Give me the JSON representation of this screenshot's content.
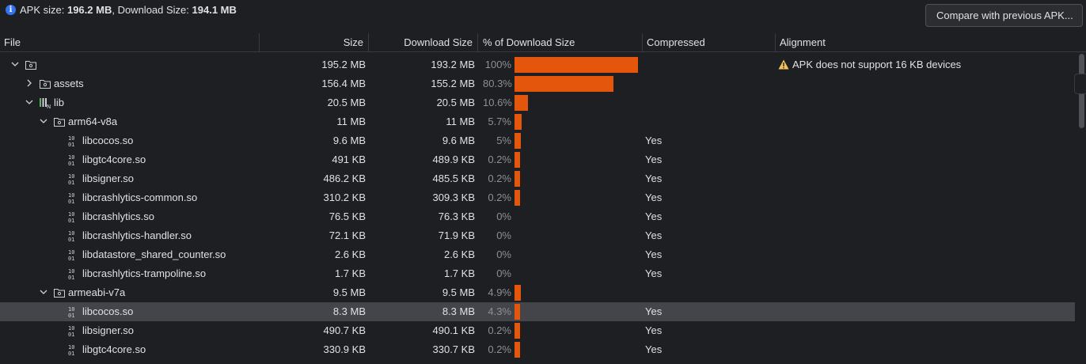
{
  "summary": {
    "apk_label": "APK size: ",
    "apk_value": "196.2 MB",
    "sep": ", Download Size: ",
    "download_value": "194.1 MB"
  },
  "compare_button": "Compare with previous APK...",
  "columns": [
    "File",
    "Size",
    "Download Size",
    "% of Download Size",
    "Compressed",
    "Alignment"
  ],
  "colors": {
    "bar": "#e4560c",
    "selected_row": "#43454a",
    "warning": "#f2c55c"
  },
  "rows": [
    {
      "depth": 0,
      "expand": "down",
      "icon": "folder-icon",
      "name": "",
      "size": "195.2 MB",
      "download": "193.2 MB",
      "pct": "100%",
      "percent": 100,
      "compressed": "",
      "alignment": "APK does not support 16 KB devices"
    },
    {
      "depth": 1,
      "expand": "right",
      "icon": "folder-icon",
      "name": "assets",
      "size": "156.4 MB",
      "download": "155.2 MB",
      "pct": "80.3%",
      "percent": 80.3,
      "compressed": "",
      "alignment": ""
    },
    {
      "depth": 1,
      "expand": "down",
      "icon": "native-lib-icon",
      "name": "lib",
      "size": "20.5 MB",
      "download": "20.5 MB",
      "pct": "10.6%",
      "percent": 10.6,
      "compressed": "",
      "alignment": ""
    },
    {
      "depth": 2,
      "expand": "down",
      "icon": "folder-icon",
      "name": "arm64-v8a",
      "size": "11 MB",
      "download": "11 MB",
      "pct": "5.7%",
      "percent": 5.7,
      "compressed": "",
      "alignment": ""
    },
    {
      "depth": 3,
      "expand": "",
      "icon": "binary-file-icon",
      "name": "libcocos.so",
      "size": "9.6 MB",
      "download": "9.6 MB",
      "pct": "5%",
      "percent": 5,
      "compressed": "Yes",
      "alignment": ""
    },
    {
      "depth": 3,
      "expand": "",
      "icon": "binary-file-icon",
      "name": "libgtc4core.so",
      "size": "491 KB",
      "download": "489.9 KB",
      "pct": "0.2%",
      "percent": 0.2,
      "compressed": "Yes",
      "alignment": ""
    },
    {
      "depth": 3,
      "expand": "",
      "icon": "binary-file-icon",
      "name": "libsigner.so",
      "size": "486.2 KB",
      "download": "485.5 KB",
      "pct": "0.2%",
      "percent": 0.2,
      "compressed": "Yes",
      "alignment": ""
    },
    {
      "depth": 3,
      "expand": "",
      "icon": "binary-file-icon",
      "name": "libcrashlytics-common.so",
      "size": "310.2 KB",
      "download": "309.3 KB",
      "pct": "0.2%",
      "percent": 0.2,
      "compressed": "Yes",
      "alignment": ""
    },
    {
      "depth": 3,
      "expand": "",
      "icon": "binary-file-icon",
      "name": "libcrashlytics.so",
      "size": "76.5 KB",
      "download": "76.3 KB",
      "pct": "0%",
      "percent": 0,
      "compressed": "Yes",
      "alignment": ""
    },
    {
      "depth": 3,
      "expand": "",
      "icon": "binary-file-icon",
      "name": "libcrashlytics-handler.so",
      "size": "72.1 KB",
      "download": "71.9 KB",
      "pct": "0%",
      "percent": 0,
      "compressed": "Yes",
      "alignment": ""
    },
    {
      "depth": 3,
      "expand": "",
      "icon": "binary-file-icon",
      "name": "libdatastore_shared_counter.so",
      "size": "2.6 KB",
      "download": "2.6 KB",
      "pct": "0%",
      "percent": 0,
      "compressed": "Yes",
      "alignment": ""
    },
    {
      "depth": 3,
      "expand": "",
      "icon": "binary-file-icon",
      "name": "libcrashlytics-trampoline.so",
      "size": "1.7 KB",
      "download": "1.7 KB",
      "pct": "0%",
      "percent": 0,
      "compressed": "Yes",
      "alignment": ""
    },
    {
      "depth": 2,
      "expand": "down",
      "icon": "folder-icon",
      "name": "armeabi-v7a",
      "size": "9.5 MB",
      "download": "9.5 MB",
      "pct": "4.9%",
      "percent": 4.9,
      "compressed": "",
      "alignment": ""
    },
    {
      "depth": 3,
      "expand": "",
      "icon": "binary-file-icon",
      "name": "libcocos.so",
      "size": "8.3 MB",
      "download": "8.3 MB",
      "pct": "4.3%",
      "percent": 4.3,
      "compressed": "Yes",
      "alignment": "",
      "selected": true
    },
    {
      "depth": 3,
      "expand": "",
      "icon": "binary-file-icon",
      "name": "libsigner.so",
      "size": "490.7 KB",
      "download": "490.1 KB",
      "pct": "0.2%",
      "percent": 0.2,
      "compressed": "Yes",
      "alignment": ""
    },
    {
      "depth": 3,
      "expand": "",
      "icon": "binary-file-icon",
      "name": "libgtc4core.so",
      "size": "330.9 KB",
      "download": "330.7 KB",
      "pct": "0.2%",
      "percent": 0.2,
      "compressed": "Yes",
      "alignment": ""
    }
  ]
}
